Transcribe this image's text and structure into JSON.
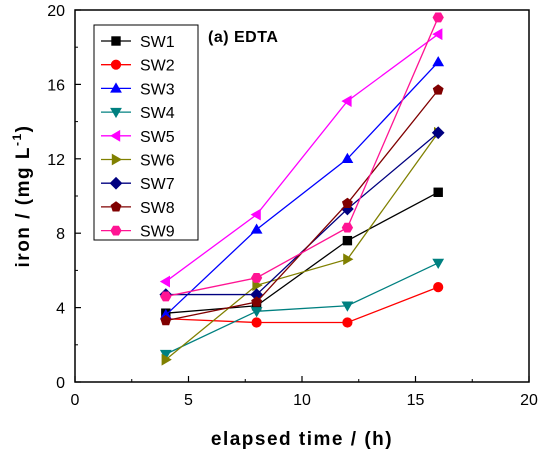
{
  "chart_data": {
    "type": "line",
    "title": "",
    "annotation": "(a) EDTA",
    "xlabel": "elapsed time / (h)",
    "ylabel_main": "iron / (mg L",
    "ylabel_sup": "-1",
    "ylabel_close": ")",
    "xlim": [
      0,
      20
    ],
    "ylim": [
      0,
      20
    ],
    "xticks": [
      "0",
      "5",
      "10",
      "15",
      "20"
    ],
    "yticks": [
      "0",
      "4",
      "8",
      "12",
      "16",
      "20"
    ],
    "grid": false,
    "legend_position": "top-left",
    "x": [
      4,
      8,
      12,
      16
    ],
    "series": [
      {
        "name": "SW1",
        "color": "#000000",
        "marker": "square",
        "values": [
          3.7,
          4.1,
          7.6,
          10.2
        ]
      },
      {
        "name": "SW2",
        "color": "#ff0000",
        "marker": "circle",
        "values": [
          3.4,
          3.2,
          3.2,
          5.1
        ]
      },
      {
        "name": "SW3",
        "color": "#0000ff",
        "marker": "triangle-up",
        "values": [
          3.6,
          8.2,
          12.0,
          17.2
        ]
      },
      {
        "name": "SW4",
        "color": "#008080",
        "marker": "triangle-down",
        "values": [
          1.5,
          3.8,
          4.1,
          6.4
        ]
      },
      {
        "name": "SW5",
        "color": "#ff00ff",
        "marker": "triangle-left",
        "values": [
          5.4,
          9.0,
          15.1,
          18.7
        ]
      },
      {
        "name": "SW6",
        "color": "#808000",
        "marker": "triangle-right",
        "values": [
          1.2,
          5.2,
          6.6,
          13.4
        ]
      },
      {
        "name": "SW7",
        "color": "#000080",
        "marker": "diamond",
        "values": [
          4.7,
          4.7,
          9.3,
          13.4
        ]
      },
      {
        "name": "SW8",
        "color": "#800000",
        "marker": "pentagon",
        "values": [
          3.3,
          4.3,
          9.6,
          15.7
        ]
      },
      {
        "name": "SW9",
        "color": "#ff1493",
        "marker": "hexagon",
        "values": [
          4.6,
          5.6,
          8.3,
          19.6
        ]
      }
    ]
  }
}
